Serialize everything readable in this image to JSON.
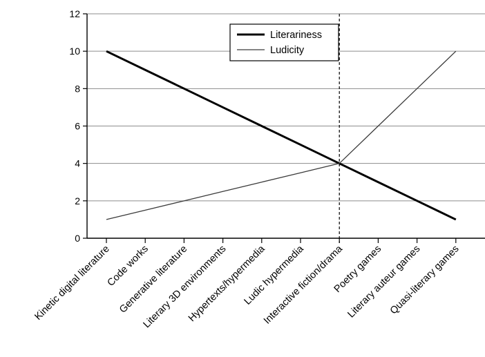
{
  "chart_data": {
    "type": "line",
    "categories": [
      "Kinetic digital literature",
      "Code works",
      "Generative literature",
      "Literary 3D environments",
      "Hypertexts/hypermedia",
      "Ludic hypermedia",
      "Interactive fiction/drama",
      "Poetry games",
      "Literary auteur games",
      "Quasi-literary games"
    ],
    "series": [
      {
        "name": "Literariness",
        "values": [
          10,
          9,
          8,
          7,
          6,
          5,
          4,
          3,
          2,
          1
        ],
        "color": "#000000",
        "style": "thick"
      },
      {
        "name": "Ludicity",
        "values": [
          1,
          1.5,
          2,
          2.5,
          3,
          3.5,
          4,
          6,
          8,
          10
        ],
        "color": "#3a3a3a",
        "style": "thin"
      }
    ],
    "ylim": [
      0,
      12
    ],
    "yticks": [
      "0",
      "2",
      "4",
      "6",
      "8",
      "10",
      "12"
    ],
    "grid": true,
    "reference_line": {
      "category": "Interactive fiction/drama",
      "style": "dashed"
    },
    "legend_position": "top-center"
  }
}
